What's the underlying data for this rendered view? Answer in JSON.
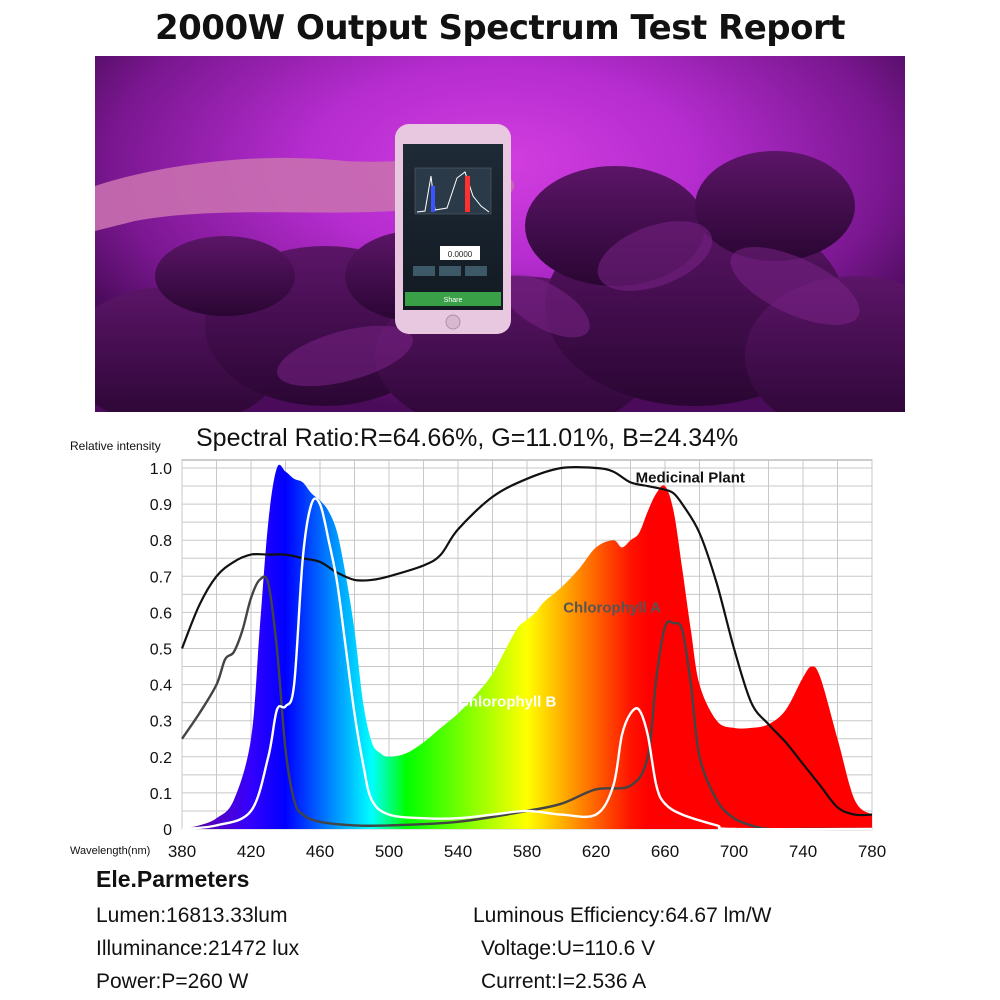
{
  "page": {
    "title": "2000W Output Spectrum Test Report",
    "spectral_ratio": "Spectral Ratio:R=64.66%, G=11.01%, B=24.34%"
  },
  "photo": {
    "phone_share_label": "Share",
    "phone_reading": "0.0000"
  },
  "params": {
    "title": "Ele.Parmeters",
    "lumen": "Lumen:16813.33lum",
    "illuminance": "Illuminance:21472 lux",
    "power": "Power:P=260 W",
    "efficiency": "Luminous Efficiency:64.67 lm/W",
    "voltage": "Voltage:U=110.6 V",
    "current": "Current:I=2.536 A"
  },
  "colors": {
    "background": "#ffffff",
    "grid": "#c8c8c8",
    "medicinal": "#111111",
    "chlorophyll_a": "#444444",
    "chlorophyll_b": "#ffffff"
  },
  "chart_data": {
    "type": "area",
    "ylabel": "Relative intensity",
    "xlabel": "Wavelength(nm)",
    "xlim": [
      380,
      780
    ],
    "ylim": [
      0,
      1.0
    ],
    "x_ticks": [
      380,
      420,
      460,
      500,
      540,
      580,
      620,
      660,
      700,
      740,
      780
    ],
    "y_ticks": [
      0,
      0.1,
      0.2,
      0.3,
      0.4,
      0.5,
      0.6,
      0.7,
      0.8,
      0.9,
      1.0
    ],
    "y_tick_labels": [
      "0",
      "0.1",
      "0.2",
      "0.3",
      "0.4",
      "0.5",
      "0.6",
      "0.7",
      "0.8",
      "0.9",
      "1.0"
    ],
    "grid": true,
    "series": [
      {
        "role": "spectrum",
        "x": [
          380,
          390,
          400,
          410,
          420,
          425,
          430,
          435,
          440,
          445,
          450,
          455,
          460,
          465,
          470,
          475,
          480,
          485,
          490,
          495,
          500,
          510,
          520,
          530,
          540,
          550,
          560,
          570,
          575,
          580,
          585,
          590,
          600,
          610,
          620,
          630,
          635,
          640,
          645,
          650,
          655,
          660,
          665,
          670,
          675,
          680,
          690,
          700,
          710,
          720,
          730,
          740,
          745,
          750,
          760,
          770,
          780
        ],
        "y": [
          0.0,
          0.01,
          0.03,
          0.08,
          0.25,
          0.55,
          0.85,
          1.0,
          0.99,
          0.97,
          0.96,
          0.93,
          0.91,
          0.88,
          0.82,
          0.7,
          0.55,
          0.35,
          0.24,
          0.21,
          0.2,
          0.21,
          0.24,
          0.28,
          0.32,
          0.37,
          0.43,
          0.52,
          0.56,
          0.58,
          0.6,
          0.63,
          0.67,
          0.72,
          0.78,
          0.8,
          0.78,
          0.8,
          0.82,
          0.88,
          0.93,
          0.95,
          0.88,
          0.72,
          0.55,
          0.4,
          0.3,
          0.28,
          0.28,
          0.29,
          0.33,
          0.42,
          0.45,
          0.42,
          0.25,
          0.08,
          0.04
        ]
      },
      {
        "name": "Medicinal Plant",
        "x": [
          380,
          390,
          400,
          410,
          420,
          430,
          440,
          450,
          460,
          470,
          480,
          490,
          500,
          520,
          530,
          540,
          560,
          580,
          600,
          620,
          630,
          640,
          650,
          660,
          665,
          670,
          680,
          690,
          700,
          710,
          720,
          730,
          740,
          750,
          760,
          770,
          780
        ],
        "y": [
          0.5,
          0.62,
          0.7,
          0.74,
          0.76,
          0.76,
          0.76,
          0.75,
          0.74,
          0.71,
          0.69,
          0.69,
          0.7,
          0.73,
          0.76,
          0.83,
          0.92,
          0.97,
          1.0,
          1.0,
          0.99,
          0.96,
          0.95,
          0.94,
          0.93,
          0.9,
          0.82,
          0.68,
          0.5,
          0.35,
          0.29,
          0.24,
          0.18,
          0.12,
          0.06,
          0.04,
          0.04
        ]
      },
      {
        "name": "Chlorophyll A",
        "x": [
          380,
          390,
          400,
          405,
          410,
          415,
          420,
          425,
          430,
          435,
          440,
          445,
          450,
          460,
          480,
          500,
          540,
          580,
          600,
          620,
          640,
          650,
          655,
          660,
          665,
          670,
          675,
          680,
          690,
          700,
          710,
          720,
          740,
          780
        ],
        "y": [
          0.25,
          0.32,
          0.4,
          0.47,
          0.49,
          0.55,
          0.64,
          0.69,
          0.68,
          0.5,
          0.22,
          0.08,
          0.04,
          0.02,
          0.01,
          0.01,
          0.02,
          0.05,
          0.07,
          0.11,
          0.12,
          0.2,
          0.42,
          0.56,
          0.57,
          0.55,
          0.4,
          0.2,
          0.08,
          0.03,
          0.01,
          0.0,
          0.0,
          0.0
        ]
      },
      {
        "name": "Chlorophyll B",
        "x": [
          380,
          400,
          420,
          430,
          435,
          440,
          445,
          450,
          455,
          460,
          465,
          470,
          475,
          480,
          485,
          490,
          500,
          520,
          540,
          560,
          580,
          600,
          620,
          630,
          635,
          640,
          645,
          650,
          655,
          660,
          670,
          690,
          700,
          780
        ],
        "y": [
          0.0,
          0.01,
          0.05,
          0.2,
          0.33,
          0.34,
          0.4,
          0.75,
          0.9,
          0.9,
          0.8,
          0.68,
          0.5,
          0.32,
          0.18,
          0.08,
          0.04,
          0.03,
          0.03,
          0.04,
          0.05,
          0.04,
          0.04,
          0.12,
          0.26,
          0.32,
          0.33,
          0.26,
          0.12,
          0.07,
          0.04,
          0.01,
          0.0,
          0.0
        ]
      }
    ],
    "annotations": [
      {
        "text": "Medicinal Plant",
        "x": 643,
        "y": 0.96
      },
      {
        "text": "Chlorophyll A",
        "x": 601,
        "y": 0.6
      },
      {
        "text": "Chlorophyll B",
        "x": 540,
        "y": 0.34
      }
    ]
  }
}
